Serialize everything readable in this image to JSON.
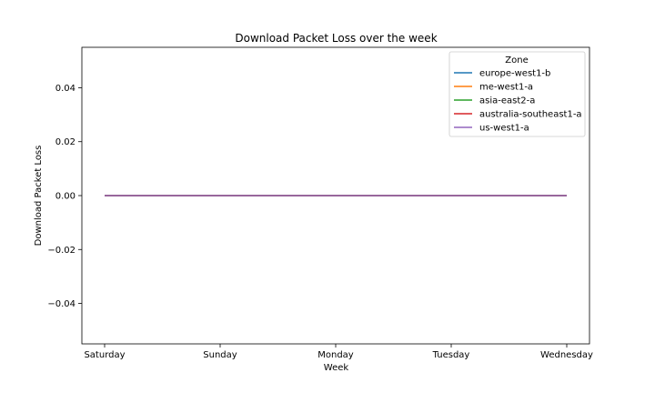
{
  "chart_data": {
    "type": "line",
    "title": "Download Packet Loss over the week",
    "xlabel": "Week",
    "ylabel": "Download Packet Loss",
    "categories": [
      "Saturday",
      "Sunday",
      "Monday",
      "Tuesday",
      "Wednesday"
    ],
    "ylim": [
      -0.055,
      0.055
    ],
    "yticks": [
      -0.04,
      -0.02,
      0.0,
      0.02,
      0.04
    ],
    "ytick_labels": [
      "−0.04",
      "−0.02",
      "0.00",
      "0.02",
      "0.04"
    ],
    "grid": false,
    "legend": {
      "title": "Zone",
      "placement": "top-right"
    },
    "series": [
      {
        "name": "europe-west1-b",
        "color": "#1f77b4",
        "values": [
          0,
          0,
          0,
          0,
          0
        ]
      },
      {
        "name": "me-west1-a",
        "color": "#ff7f0e",
        "values": [
          0,
          0,
          0,
          0,
          0
        ]
      },
      {
        "name": "asia-east2-a",
        "color": "#2ca02c",
        "values": [
          0,
          0,
          0,
          0,
          0
        ]
      },
      {
        "name": "australia-southeast1-a",
        "color": "#d62728",
        "values": [
          0,
          0,
          0,
          0,
          0
        ]
      },
      {
        "name": "us-west1-a",
        "color": "#9467bd",
        "values": [
          0,
          0,
          0,
          0,
          0
        ]
      }
    ]
  }
}
